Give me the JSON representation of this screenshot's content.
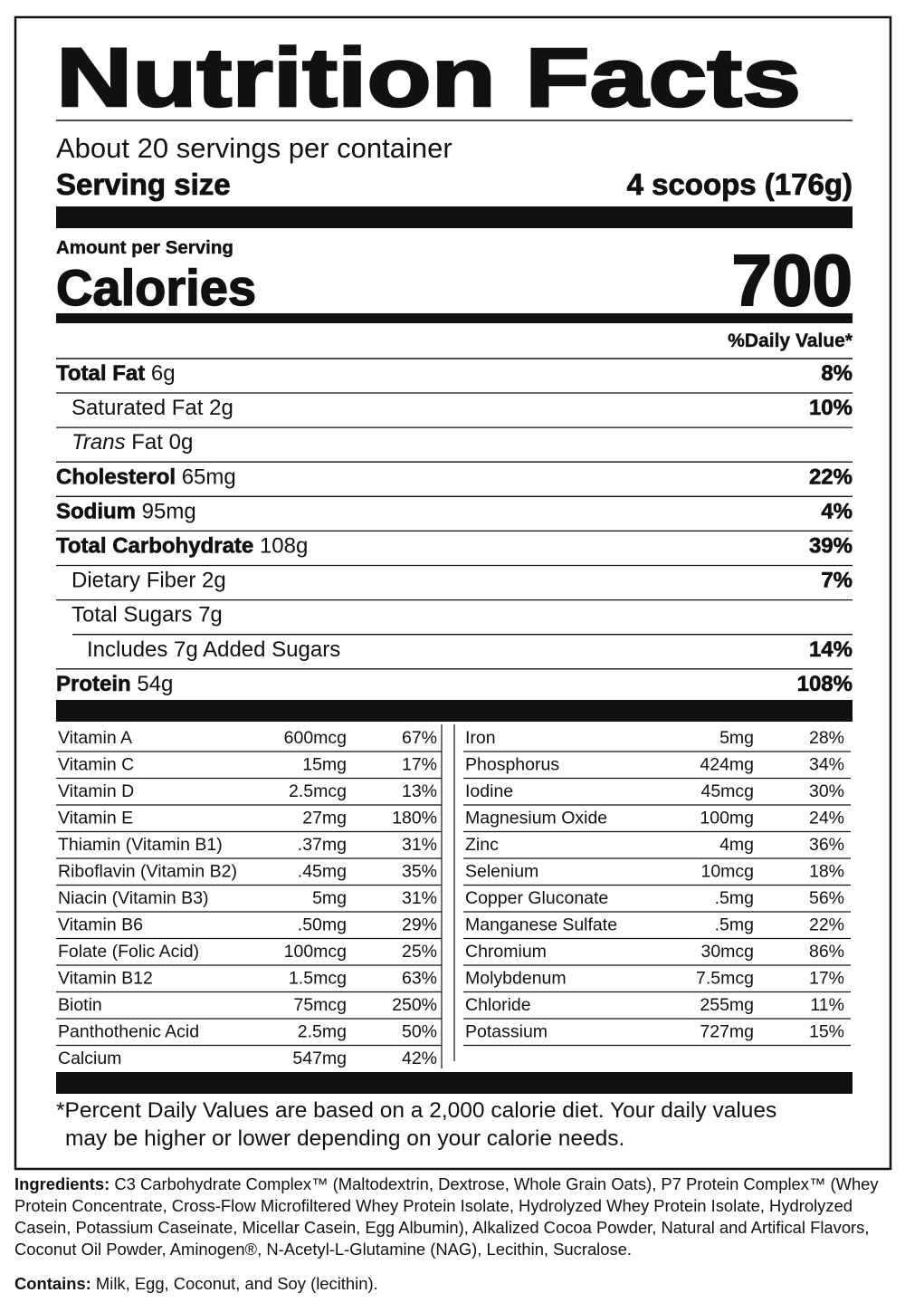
{
  "title": "Nutrition Facts",
  "servings": "About 20 servings per container",
  "serving_size": {
    "label": "Serving size",
    "value": "4 scoops (176g)"
  },
  "amount_per_serving": "Amount per Serving",
  "calories": {
    "label": "Calories",
    "value": 700
  },
  "daily_value_header": "%Daily Value*",
  "nutrients": [
    {
      "name": "Total Fat",
      "amount": "6g",
      "dv": "8%"
    },
    {
      "name": "Saturated Fat",
      "amount": "2g",
      "dv": "10%"
    },
    {
      "name_italic": "Trans",
      "name": "Fat",
      "amount": "0g"
    },
    {
      "name": "Cholesterol",
      "amount": "65mg",
      "dv": "22%"
    },
    {
      "name": "Sodium",
      "amount": "95mg",
      "dv": "4%"
    },
    {
      "name": "Total Carbohydrate",
      "amount": "108g",
      "dv": "39%"
    },
    {
      "name": "Dietary Fiber",
      "amount": "2g",
      "dv": "7%"
    },
    {
      "name": "Total Sugars",
      "amount": "7g"
    },
    {
      "name": "Includes 7g Added Sugars",
      "dv": "14%"
    },
    {
      "name": "Protein",
      "amount": "54g",
      "dv": "108%"
    }
  ],
  "micronutrients_left": [
    [
      "Vitamin A",
      "600mcg",
      "67%"
    ],
    [
      "Vitamin C",
      "15mg",
      "17%"
    ],
    [
      "Vitamin D",
      "2.5mcg",
      "13%"
    ],
    [
      "Vitamin E",
      "27mg",
      "180%"
    ],
    [
      "Thiamin (Vitamin B1)",
      ".37mg",
      "31%"
    ],
    [
      "Riboflavin (Vitamin B2)",
      ".45mg",
      "35%"
    ],
    [
      "Niacin (Vitamin B3)",
      "5mg",
      "31%"
    ],
    [
      "Vitamin B6",
      ".50mg",
      "29%"
    ],
    [
      "Folate (Folic Acid)",
      "100mcg",
      "25%"
    ],
    [
      "Vitamin B12",
      "1.5mcg",
      "63%"
    ],
    [
      "Biotin",
      "75mcg",
      "250%"
    ],
    [
      "Panthothenic Acid",
      "2.5mg",
      "50%"
    ],
    [
      "Calcium",
      "547mg",
      "42%"
    ]
  ],
  "micronutrients_right": [
    [
      "Iron",
      "5mg",
      "28%"
    ],
    [
      "Phosphorus",
      "424mg",
      "34%"
    ],
    [
      "Iodine",
      "45mcg",
      "30%"
    ],
    [
      "Magnesium Oxide",
      "100mg",
      "24%"
    ],
    [
      "Zinc",
      "4mg",
      "36%"
    ],
    [
      "Selenium",
      "10mcg",
      "18%"
    ],
    [
      "Copper Gluconate",
      ".5mg",
      "56%"
    ],
    [
      "Manganese Sulfate",
      ".5mg",
      "22%"
    ],
    [
      "Chromium",
      "30mcg",
      "86%"
    ],
    [
      "Molybdenum",
      "7.5mcg",
      "17%"
    ],
    [
      "Chloride",
      "255mg",
      "11%"
    ],
    [
      "Potassium",
      "727mg",
      "15%"
    ]
  ],
  "footnote": [
    "*Percent Daily Values are based on a 2,000 calorie diet. Your daily values",
    "may be higher or lower depending on your calorie needs."
  ],
  "ingredients": {
    "label": "Ingredients:",
    "text": "C3 Carbohydrate Complex™ (Maltodextrin, Dextrose, Whole Grain Oats), P7 Protein Complex™ (Whey Protein Concentrate, Cross-Flow Microfiltered Whey Protein Isolate, Hydrolyzed Whey Protein Isolate, Hydrolyzed Casein, Potassium Caseinate, Micellar Casein, Egg Albumin), Alkalized Cocoa Powder, Natural and Artifical Flavors, Coconut Oil Powder, Aminogen®, N-Acetyl-L-Glutamine (NAG), Lecithin, Sucralose."
  },
  "contains": {
    "label": "Contains:",
    "text": "Milk, Egg, Coconut, and Soy (lecithin)."
  }
}
